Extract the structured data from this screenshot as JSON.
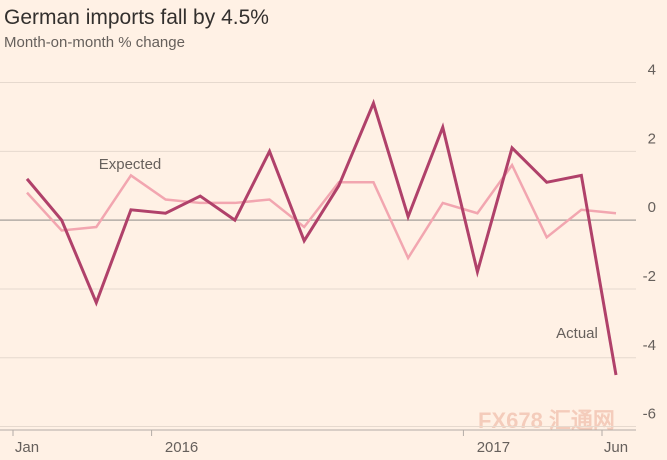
{
  "chart_data": {
    "type": "line",
    "title": "German imports fall by 4.5%",
    "subtitle": "Month-on-month % change",
    "watermark": "FX678 汇通网",
    "categories": [
      "Jan",
      null,
      null,
      null,
      "2016",
      null,
      null,
      null,
      null,
      null,
      null,
      null,
      null,
      "2017",
      null,
      null,
      null,
      "Jun"
    ],
    "series": [
      {
        "name": "Expected",
        "color": "#f2a6b0",
        "values": [
          0.8,
          -0.3,
          -0.2,
          1.3,
          0.6,
          0.5,
          0.5,
          0.6,
          -0.2,
          1.1,
          1.1,
          -1.1,
          0.5,
          0.2,
          1.6,
          -0.5,
          0.3,
          0.2
        ]
      },
      {
        "name": "Actual",
        "color": "#b0416a",
        "values": [
          1.2,
          0,
          -2.4,
          0.3,
          0.2,
          0.7,
          0,
          2,
          -0.6,
          1,
          3.4,
          0.1,
          2.7,
          -1.5,
          2.1,
          1.1,
          1.3,
          -4.5
        ]
      }
    ],
    "ylim": [
      -6.1,
      4.8
    ],
    "yticks": [
      4,
      2,
      0,
      -2,
      -4,
      -6
    ],
    "grid": true
  }
}
